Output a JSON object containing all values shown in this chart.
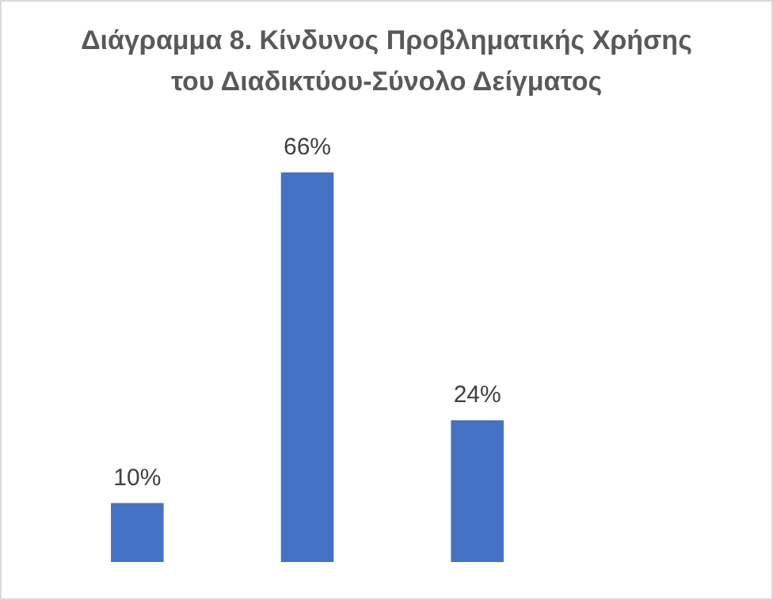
{
  "chart_data": {
    "type": "bar",
    "title": "Διάγραμμα 8. Κίνδυνος Προβληματικής Χρήσης του Διαδικτύου-Σύνολο Δείγματος",
    "categories": [
      null,
      null,
      null
    ],
    "values": [
      10,
      66,
      24
    ],
    "value_labels": [
      "10%",
      "66%",
      "24%"
    ],
    "color": "#4472c4",
    "relative": false,
    "grid": false,
    "legend": false
  }
}
